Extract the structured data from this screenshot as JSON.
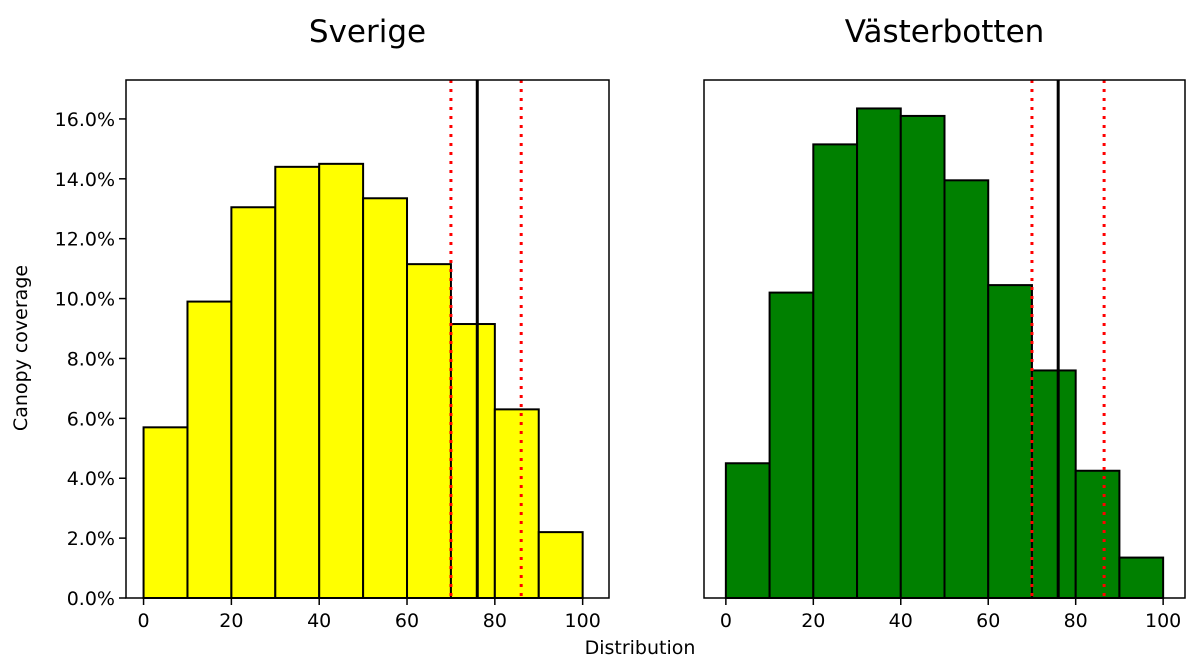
{
  "figure": {
    "xlabel": "Distribution",
    "ylabel": "Canopy coverage"
  },
  "chart_data": [
    {
      "type": "bar",
      "title": "Sverige",
      "bin_edges": [
        0,
        10,
        20,
        30,
        40,
        50,
        60,
        70,
        80,
        90,
        100
      ],
      "values": [
        5.7,
        9.9,
        13.05,
        14.4,
        14.5,
        13.35,
        11.15,
        9.15,
        6.3,
        2.2
      ],
      "bar_color": "#ffff00",
      "edge_color": "#000000",
      "reference_lines": [
        {
          "x": 70,
          "style": "dotted",
          "color": "#ff0000"
        },
        {
          "x": 76,
          "style": "solid",
          "color": "#000000"
        },
        {
          "x": 86,
          "style": "dotted",
          "color": "#ff0000"
        }
      ],
      "xlim": [
        -4,
        106
      ],
      "ylim": [
        0,
        17.3
      ],
      "xticks": [
        0,
        20,
        40,
        60,
        80,
        100
      ],
      "yticks": [
        0,
        2,
        4,
        6,
        8,
        10,
        12,
        14,
        16
      ],
      "ytick_labels": [
        "0.0%",
        "2.0%",
        "4.0%",
        "6.0%",
        "8.0%",
        "10.0%",
        "12.0%",
        "14.0%",
        "16.0%"
      ],
      "ylabel": "Canopy coverage",
      "xlabel": "Distribution"
    },
    {
      "type": "bar",
      "title": "Västerbotten",
      "bin_edges": [
        0,
        10,
        20,
        30,
        40,
        50,
        60,
        70,
        80,
        90,
        100
      ],
      "values": [
        4.5,
        10.2,
        15.15,
        16.35,
        16.1,
        13.95,
        10.45,
        7.6,
        4.25,
        1.35
      ],
      "bar_color": "#008000",
      "edge_color": "#000000",
      "reference_lines": [
        {
          "x": 70,
          "style": "dotted",
          "color": "#ff0000"
        },
        {
          "x": 76,
          "style": "solid",
          "color": "#000000"
        },
        {
          "x": 86.5,
          "style": "dotted",
          "color": "#ff0000"
        }
      ],
      "xlim": [
        -5,
        105
      ],
      "ylim": [
        0,
        17.3
      ],
      "xticks": [
        0,
        20,
        40,
        60,
        80,
        100
      ],
      "yticks": [],
      "ytick_labels": []
    }
  ]
}
